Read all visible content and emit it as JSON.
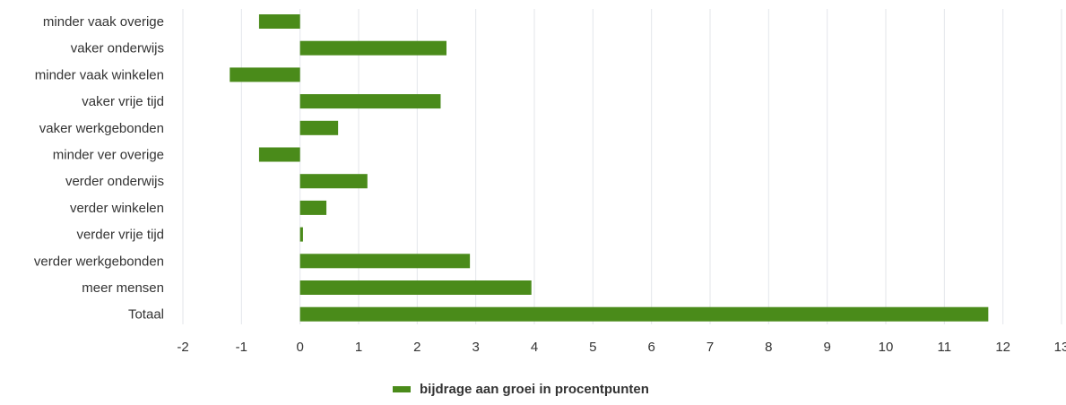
{
  "chart_data": {
    "type": "bar",
    "orientation": "horizontal",
    "categories": [
      "minder vaak overige",
      "vaker onderwijs",
      "minder vaak winkelen",
      "vaker vrije tijd",
      "vaker werkgebonden",
      "minder ver overige",
      "verder onderwijs",
      "verder winkelen",
      "verder vrije tijd",
      "verder werkgebonden",
      "meer mensen",
      "Totaal"
    ],
    "series": [
      {
        "name": "bijdrage aan groei in procentpunten",
        "color": "#4a8b1a",
        "values": [
          -0.7,
          2.5,
          -1.2,
          2.4,
          0.65,
          -0.7,
          1.15,
          0.45,
          0.05,
          2.9,
          3.95,
          11.75
        ]
      }
    ],
    "xlim": [
      -2,
      13
    ],
    "xticks": [
      "-2",
      "-1",
      "0",
      "1",
      "2",
      "3",
      "4",
      "5",
      "6",
      "7",
      "8",
      "9",
      "10",
      "11",
      "12",
      "13"
    ],
    "grid": true,
    "legend_position": "bottom"
  }
}
